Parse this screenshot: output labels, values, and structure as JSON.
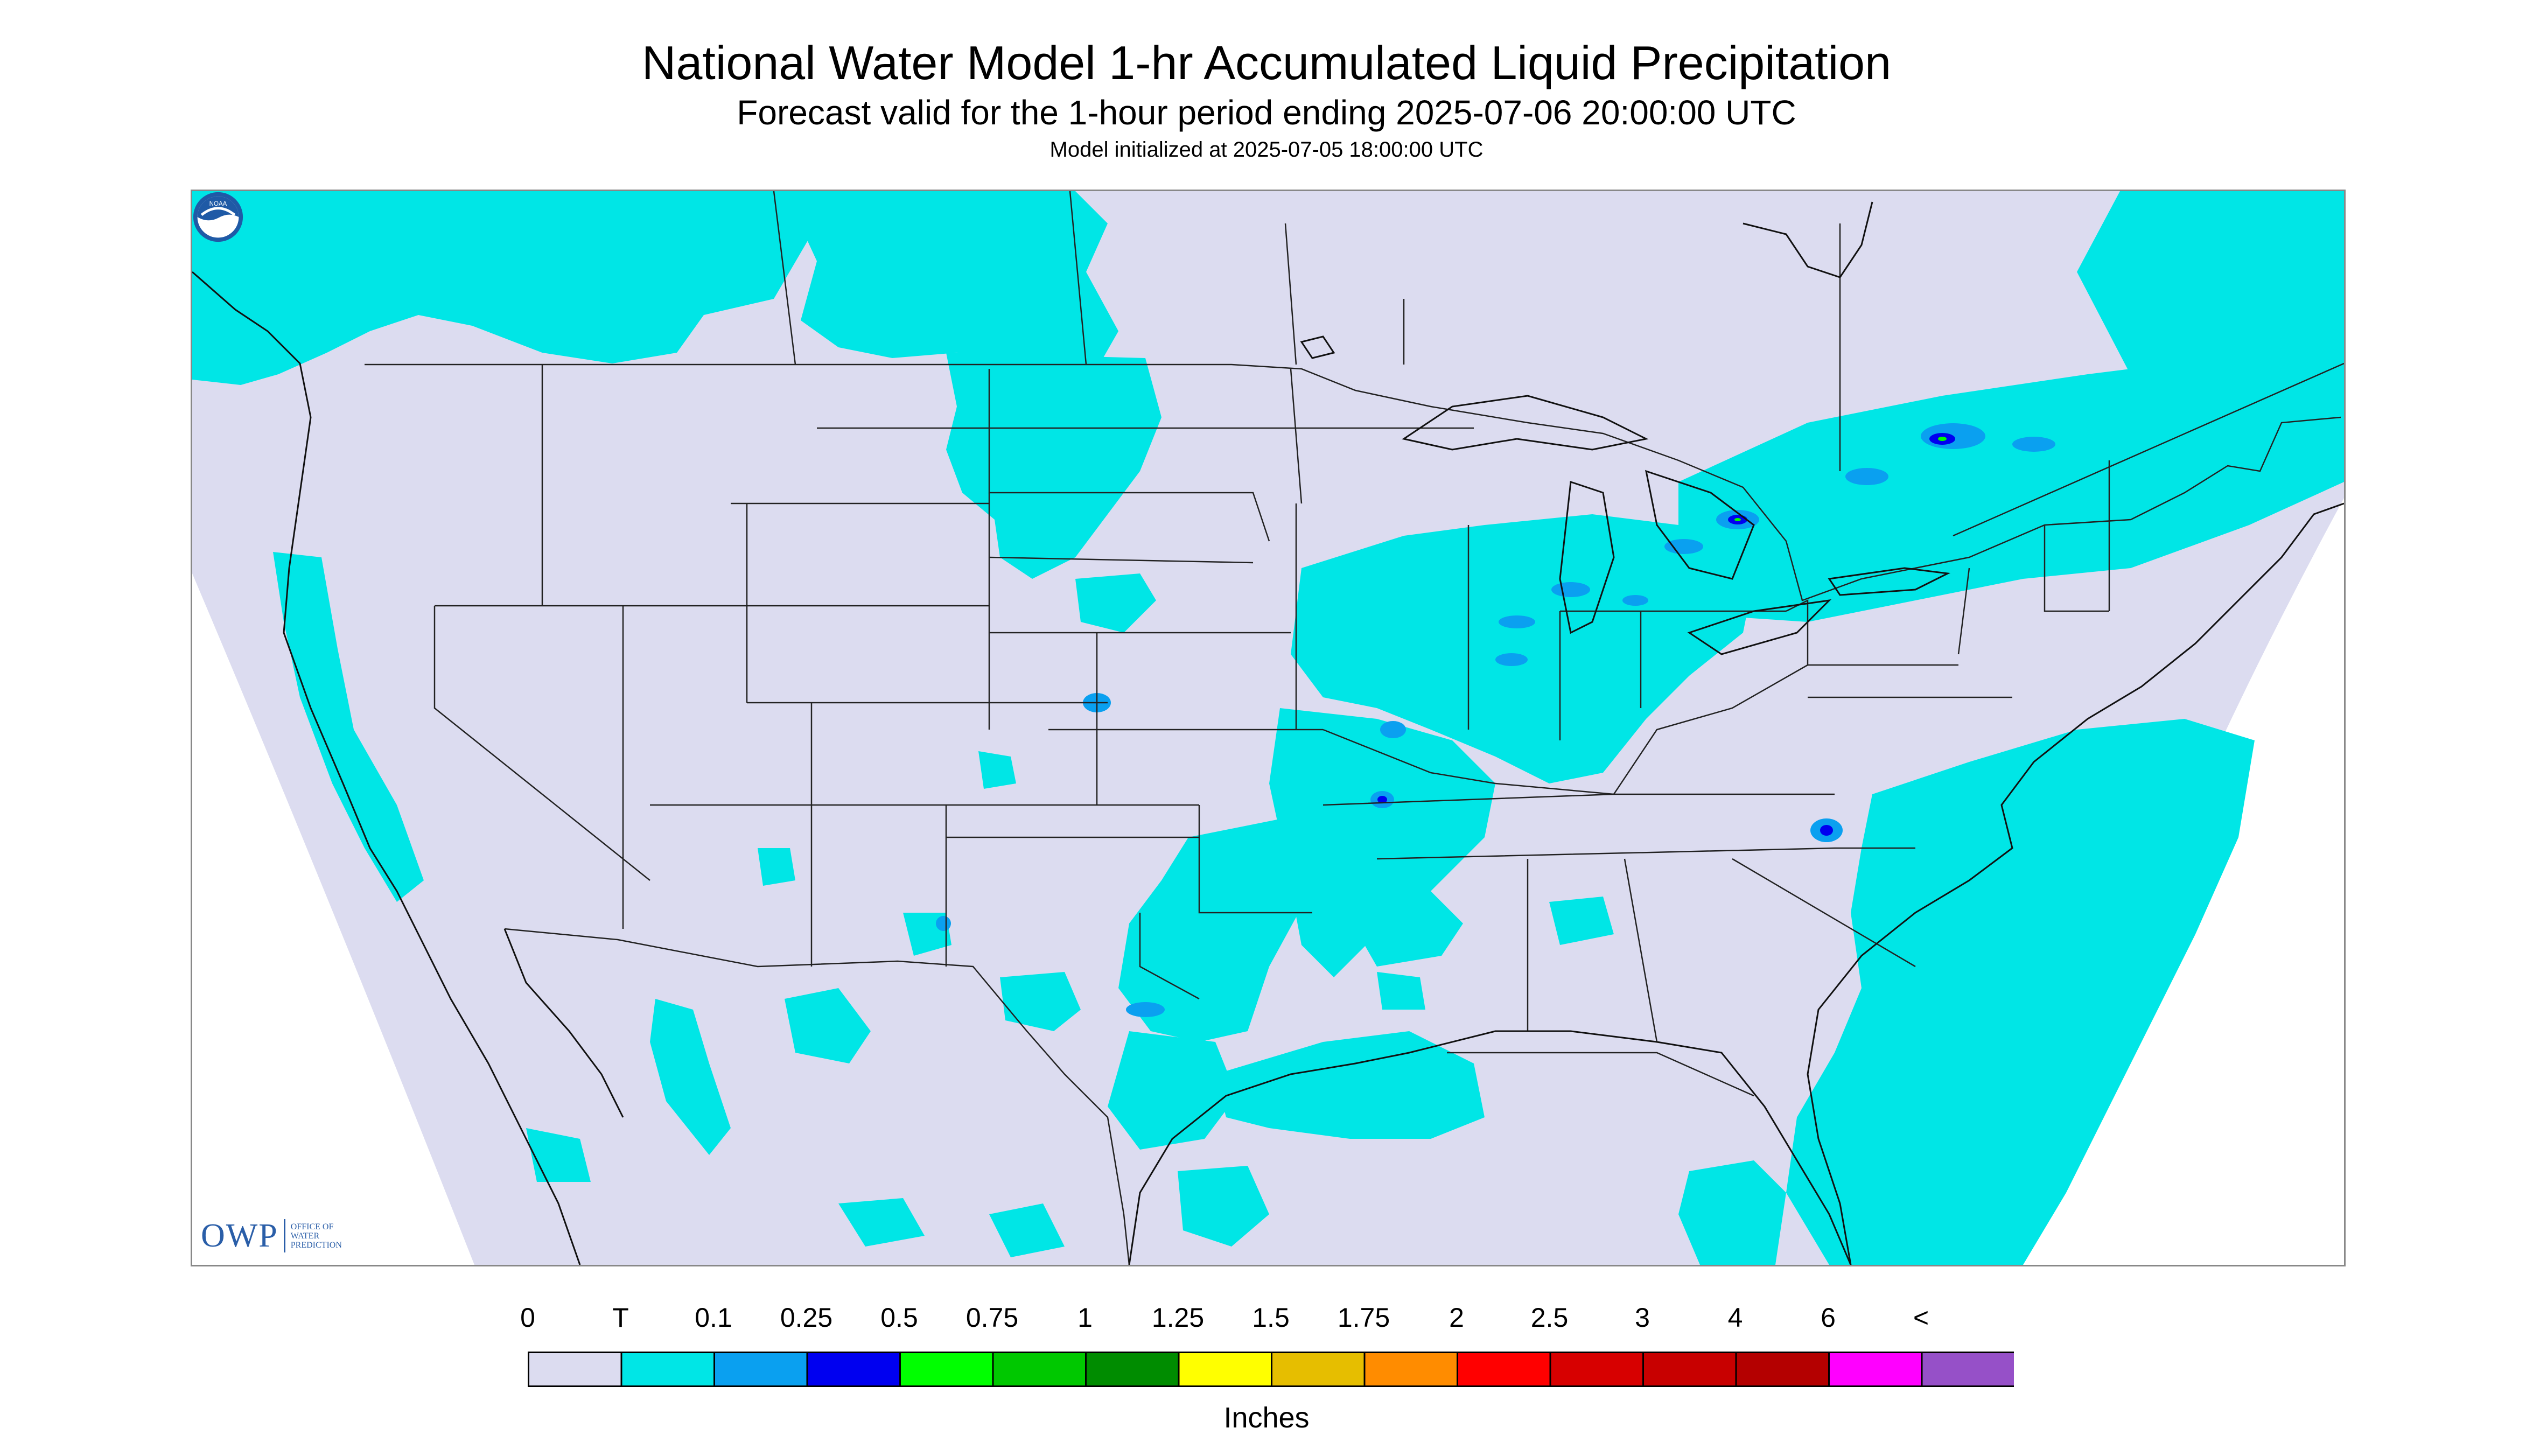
{
  "title": "National Water Model 1-hr Accumulated Liquid Precipitation",
  "subtitle": "Forecast valid for the 1-hour period ending 2025-07-06 20:00:00 UTC",
  "init_line": "Model initialized at 2025-07-05 18:00:00 UTC",
  "legend": {
    "tick_labels": [
      "0",
      "T",
      "0.1",
      "0.25",
      "0.5",
      "0.75",
      "1",
      "1.25",
      "1.5",
      "1.75",
      "2",
      "2.5",
      "3",
      "4",
      "6",
      "<"
    ],
    "colors": [
      "#dcdcf0",
      "#00e6e6",
      "#0aa0f0",
      "#0000f0",
      "#00ff00",
      "#00c800",
      "#008c00",
      "#ffff00",
      "#e6be00",
      "#ff8c00",
      "#ff0000",
      "#d70000",
      "#c80000",
      "#b40000",
      "#ff00ff",
      "#9650c8"
    ],
    "units": "Inches"
  },
  "map": {
    "domain_color": "#dcdcf0",
    "precip_colors": {
      "trace": "#00e6e6",
      "light": "#0aa0f0",
      "moderate": "#0000f0",
      "heavy": "#00ff00"
    }
  },
  "logos": {
    "owp": {
      "main": "OWP",
      "sub": [
        "Office of",
        "Water",
        "Prediction"
      ]
    },
    "noaa": {
      "text": "NOAA"
    }
  }
}
